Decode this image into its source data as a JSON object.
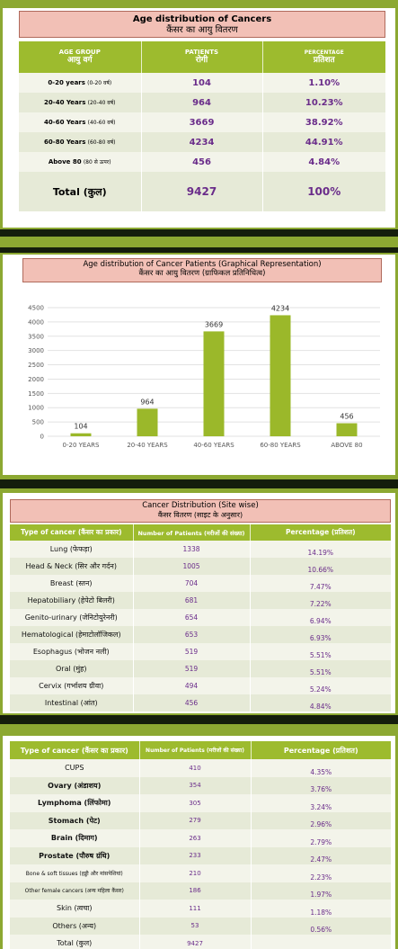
{
  "age_table": {
    "title": "Age distribution of Cancers",
    "title_hi": "कैंसर का आयु वितरण",
    "headers": {
      "group": "AGE GROUP",
      "group_hi": "आयु वर्ग",
      "patients": "PATIENTS",
      "patients_hi": "रोगी",
      "percent": "PERCENTAGE",
      "percent_hi": "प्रतिशत"
    },
    "rows": [
      {
        "group": "0-20 years",
        "group_hi": "(0-20 वर्ष)",
        "patients": "104",
        "percent": "1.10%"
      },
      {
        "group": "20-40 Years",
        "group_hi": "(20-40 वर्ष)",
        "patients": "964",
        "percent": "10.23%"
      },
      {
        "group": "40-60 Years",
        "group_hi": "(40-60 वर्ष)",
        "patients": "3669",
        "percent": "38.92%"
      },
      {
        "group": "60-80 Years",
        "group_hi": "(60-80 वर्ष)",
        "patients": "4234",
        "percent": "44.91%"
      },
      {
        "group": "Above 80",
        "group_hi": "(80 से ऊपर)",
        "patients": "456",
        "percent": "4.84%"
      }
    ],
    "total": {
      "label": "Total (कुल)",
      "patients": "9427",
      "percent": "100%"
    }
  },
  "age_chart_panel": {
    "title": "Age distribution of Cancer Patients (Graphical Representation)",
    "title_hi": "कैंसर का आयु वितरण (ग्राफिकल प्रतिनिधित्व)"
  },
  "chart_data": {
    "type": "bar",
    "categories": [
      "0-20 YEARS",
      "20-40 YEARS",
      "40-60 YEARS",
      "60-80 YEARS",
      "ABOVE 80"
    ],
    "values": [
      104,
      964,
      3669,
      4234,
      456
    ],
    "ylim": [
      0,
      4500
    ],
    "yticks": [
      0,
      500,
      1000,
      1500,
      2000,
      2500,
      3000,
      3500,
      4000,
      4500
    ],
    "grid": true,
    "colors": {
      "bar": "#9bb82a",
      "grid": "#e2e2e2"
    }
  },
  "site_table": {
    "title": "Cancer Distribution (Site wise)",
    "title_hi": "कैंसर वितरण (साइट के अनुसार)",
    "headers": {
      "type": "Type of cancer (कैंसर का प्रकार)",
      "patients": "Number of Patients (मरीजों की संख्या)",
      "percent": "Percentage (प्रतिशत)"
    },
    "rows": [
      {
        "name": "Lung (फेफड़ा)",
        "patients": "1338",
        "percent": "14.19%"
      },
      {
        "name": "Head & Neck (सिर और गर्दन)",
        "patients": "1005",
        "percent": "10.66%"
      },
      {
        "name": "Breast (स्तन)",
        "patients": "704",
        "percent": "7.47%"
      },
      {
        "name": "Hepatobiliary (हेपेटो बिलरी)",
        "patients": "681",
        "percent": "7.22%"
      },
      {
        "name": "Genito-urinary (जेनिटोयुरेनरी)",
        "patients": "654",
        "percent": "6.94%"
      },
      {
        "name": "Hematological (हेमाटोलॉजिकल)",
        "patients": "653",
        "percent": "6.93%"
      },
      {
        "name": "Esophagus (भोजन नली)",
        "patients": "519",
        "percent": "5.51%"
      },
      {
        "name": "Oral (मुंह)",
        "patients": "519",
        "percent": "5.51%"
      },
      {
        "name": "Cervix (गर्भाशय ग्रीवा)",
        "patients": "494",
        "percent": "5.24%"
      },
      {
        "name": "Intestinal (आंत)",
        "patients": "456",
        "percent": "4.84%"
      }
    ]
  },
  "site_table_2": {
    "headers": {
      "type": "Type of cancer (कैंसर का प्रकार)",
      "patients": "Number of Patients (मरीजों की संख्या)",
      "percent": "Percentage (प्रतिशत)"
    },
    "rows": [
      {
        "name": "CUPS",
        "patients": "410",
        "percent": "4.35%",
        "bold": false
      },
      {
        "name": "Ovary (अंडाशय)",
        "patients": "354",
        "percent": "3.76%",
        "bold": true
      },
      {
        "name": "Lymphoma (लिंफोमा)",
        "patients": "305",
        "percent": "3.24%",
        "bold": true
      },
      {
        "name": "Stomach (पेट)",
        "patients": "279",
        "percent": "2.96%",
        "bold": true
      },
      {
        "name": "Brain (दिमाग)",
        "patients": "263",
        "percent": "2.79%",
        "bold": true
      },
      {
        "name": "Prostate (पौरुष ग्रंथि)",
        "patients": "233",
        "percent": "2.47%",
        "bold": true
      },
      {
        "name": "Bone & soft tissues (हड्डी और मांसपेशियां)",
        "patients": "210",
        "percent": "2.23%",
        "bold": false
      },
      {
        "name": "Other female cancers (अन्य महिला कैंसर)",
        "patients": "186",
        "percent": "1.97%",
        "bold": false
      },
      {
        "name": "Skin (त्वचा)",
        "patients": "111",
        "percent": "1.18%",
        "bold": false
      },
      {
        "name": "Others (अन्य)",
        "patients": "53",
        "percent": "0.56%",
        "bold": false
      },
      {
        "name": "Total (कुल)",
        "patients": "9427",
        "percent": "",
        "bold": false
      }
    ]
  }
}
